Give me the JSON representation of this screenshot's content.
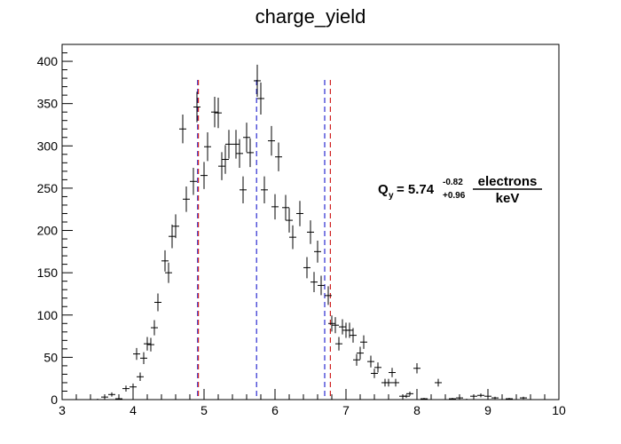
{
  "chart_data": {
    "type": "scatter",
    "title": "charge_yield",
    "xlabel": "",
    "ylabel": "",
    "xlim": [
      3,
      10
    ],
    "ylim": [
      0,
      420
    ],
    "x_ticks": [
      3,
      4,
      5,
      6,
      7,
      8,
      9,
      10
    ],
    "y_ticks": [
      0,
      50,
      100,
      150,
      200,
      250,
      300,
      350,
      400
    ],
    "bin_width": 0.1,
    "series": [
      {
        "points": [
          {
            "x": 3.5,
            "y": 0,
            "err": 1
          },
          {
            "x": 3.6,
            "y": 3,
            "err": 2
          },
          {
            "x": 3.7,
            "y": 6,
            "err": 2.5
          },
          {
            "x": 3.8,
            "y": 1,
            "err": 1
          },
          {
            "x": 3.9,
            "y": 13,
            "err": 3.6
          },
          {
            "x": 4.0,
            "y": 15,
            "err": 4
          },
          {
            "x": 4.05,
            "y": 54,
            "err": 7
          },
          {
            "x": 4.1,
            "y": 27,
            "err": 5
          },
          {
            "x": 4.15,
            "y": 49,
            "err": 7
          },
          {
            "x": 4.2,
            "y": 66,
            "err": 8
          },
          {
            "x": 4.25,
            "y": 65,
            "err": 8
          },
          {
            "x": 4.3,
            "y": 85,
            "err": 9
          },
          {
            "x": 4.35,
            "y": 115,
            "err": 10.5
          },
          {
            "x": 4.45,
            "y": 164,
            "err": 12.5
          },
          {
            "x": 4.5,
            "y": 150,
            "err": 12
          },
          {
            "x": 4.55,
            "y": 193,
            "err": 14
          },
          {
            "x": 4.6,
            "y": 205,
            "err": 14
          },
          {
            "x": 4.7,
            "y": 320,
            "err": 17
          },
          {
            "x": 4.75,
            "y": 237,
            "err": 15
          },
          {
            "x": 4.85,
            "y": 258,
            "err": 16
          },
          {
            "x": 4.9,
            "y": 346,
            "err": 18
          },
          {
            "x": 5.0,
            "y": 265,
            "err": 16
          },
          {
            "x": 5.05,
            "y": 299,
            "err": 17
          },
          {
            "x": 5.15,
            "y": 340,
            "err": 18
          },
          {
            "x": 5.2,
            "y": 339,
            "err": 18
          },
          {
            "x": 5.25,
            "y": 276,
            "err": 16.5
          },
          {
            "x": 5.3,
            "y": 284,
            "err": 17
          },
          {
            "x": 5.35,
            "y": 302,
            "err": 17
          },
          {
            "x": 5.45,
            "y": 302,
            "err": 17
          },
          {
            "x": 5.5,
            "y": 291,
            "err": 17
          },
          {
            "x": 5.55,
            "y": 248,
            "err": 16
          },
          {
            "x": 5.6,
            "y": 310,
            "err": 17.5
          },
          {
            "x": 5.65,
            "y": 292,
            "err": 17
          },
          {
            "x": 5.75,
            "y": 377,
            "err": 19
          },
          {
            "x": 5.8,
            "y": 356,
            "err": 19
          },
          {
            "x": 5.85,
            "y": 248,
            "err": 16
          },
          {
            "x": 5.95,
            "y": 306,
            "err": 17.5
          },
          {
            "x": 6.0,
            "y": 228,
            "err": 15
          },
          {
            "x": 6.05,
            "y": 287,
            "err": 17
          },
          {
            "x": 6.15,
            "y": 227,
            "err": 15
          },
          {
            "x": 6.2,
            "y": 212,
            "err": 14.5
          },
          {
            "x": 6.25,
            "y": 192,
            "err": 14
          },
          {
            "x": 6.35,
            "y": 220,
            "err": 15
          },
          {
            "x": 6.45,
            "y": 156,
            "err": 12.5
          },
          {
            "x": 6.5,
            "y": 198,
            "err": 14
          },
          {
            "x": 6.55,
            "y": 139,
            "err": 12
          },
          {
            "x": 6.6,
            "y": 175,
            "err": 13
          },
          {
            "x": 6.65,
            "y": 135,
            "err": 11.5
          },
          {
            "x": 6.75,
            "y": 123,
            "err": 11
          },
          {
            "x": 6.8,
            "y": 90,
            "err": 9.5
          },
          {
            "x": 6.85,
            "y": 88,
            "err": 9.5
          },
          {
            "x": 6.9,
            "y": 66,
            "err": 8
          },
          {
            "x": 6.95,
            "y": 86,
            "err": 9
          },
          {
            "x": 7.0,
            "y": 82,
            "err": 9
          },
          {
            "x": 7.05,
            "y": 82,
            "err": 9
          },
          {
            "x": 7.1,
            "y": 76,
            "err": 8.7
          },
          {
            "x": 7.15,
            "y": 47,
            "err": 7
          },
          {
            "x": 7.2,
            "y": 55,
            "err": 7.5
          },
          {
            "x": 7.25,
            "y": 68,
            "err": 8
          },
          {
            "x": 7.35,
            "y": 45,
            "err": 7
          },
          {
            "x": 7.4,
            "y": 31,
            "err": 5.5
          },
          {
            "x": 7.45,
            "y": 38,
            "err": 6
          },
          {
            "x": 7.55,
            "y": 20,
            "err": 4.5
          },
          {
            "x": 7.6,
            "y": 20,
            "err": 4.5
          },
          {
            "x": 7.65,
            "y": 32,
            "err": 5.5
          },
          {
            "x": 7.7,
            "y": 20,
            "err": 4.5
          },
          {
            "x": 7.8,
            "y": 4,
            "err": 2
          },
          {
            "x": 7.85,
            "y": 4,
            "err": 2
          },
          {
            "x": 7.9,
            "y": 7,
            "err": 2.5
          },
          {
            "x": 8.0,
            "y": 37,
            "err": 6
          },
          {
            "x": 8.1,
            "y": 1,
            "err": 1
          },
          {
            "x": 8.3,
            "y": 20,
            "err": 4.5
          },
          {
            "x": 8.5,
            "y": 1,
            "err": 1
          },
          {
            "x": 8.6,
            "y": 2,
            "err": 1.4
          },
          {
            "x": 8.7,
            "y": 0,
            "err": 1
          },
          {
            "x": 8.8,
            "y": 4,
            "err": 2
          },
          {
            "x": 8.9,
            "y": 5,
            "err": 2.2
          },
          {
            "x": 9.0,
            "y": 4,
            "err": 2
          },
          {
            "x": 9.1,
            "y": 2,
            "err": 1.4
          },
          {
            "x": 9.3,
            "y": 1,
            "err": 1
          },
          {
            "x": 9.5,
            "y": 2,
            "err": 1.4
          }
        ]
      }
    ],
    "vertical_lines": [
      {
        "x": 4.91,
        "color": "#2a2ad0",
        "style": "dashed"
      },
      {
        "x": 4.92,
        "color": "#d02020",
        "style": "dashed"
      },
      {
        "x": 5.74,
        "color": "#2a2ad0",
        "style": "dashed"
      },
      {
        "x": 6.7,
        "color": "#2a2ad0",
        "style": "dashed"
      },
      {
        "x": 6.78,
        "color": "#d02020",
        "style": "dashed"
      }
    ],
    "annotation": {
      "symbol": "Q",
      "subscript": "y",
      "equals": "= 5.74",
      "superscript": "-0.82",
      "subscript_err": "+0.96",
      "numerator": "electrons",
      "denominator": "keV"
    }
  }
}
